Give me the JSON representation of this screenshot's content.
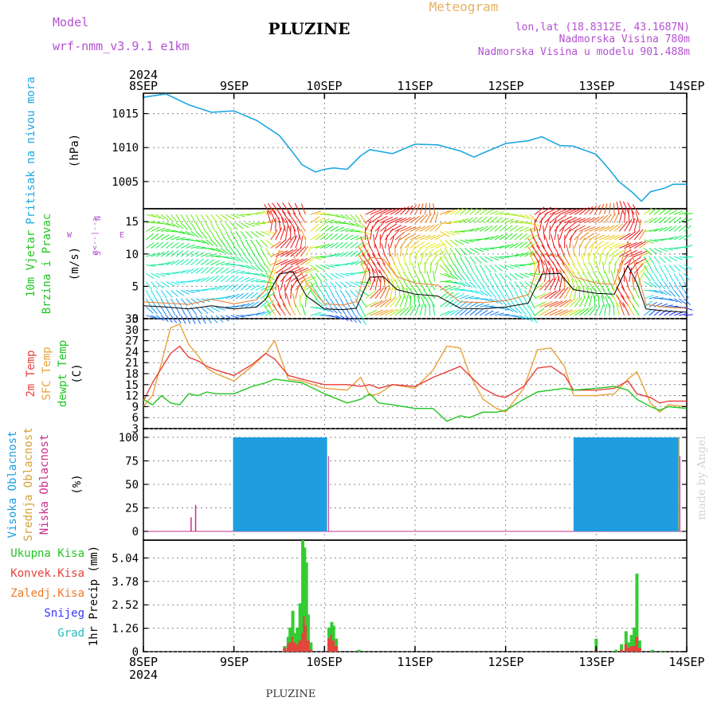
{
  "header": {
    "model_label": "Model",
    "model_name": "wrf-nmm_v3.9.1  e1km",
    "station": "PLUZINE",
    "meteogram": "Meteogram",
    "lonlat": "lon,lat (18.8312E, 43.1687N)",
    "elevation": "Nadmorska Visina 780m",
    "model_elevation": "Nadmorska Visina u modelu 901.488m",
    "footer_station": "PLUZINE",
    "watermark": "made by Angel"
  },
  "colors": {
    "pressure": "#1ea8e0",
    "temp2m": "#e8413c",
    "sfc": "#e8a33a",
    "dewpt": "#22c522",
    "hi_cloud": "#1e9ee0",
    "mid_cloud": "#d4a23a",
    "low_cloud": "#c82f8c",
    "total_precip": "#33cc33",
    "conv_precip": "#e8413c",
    "frozen": "#ee7a2a",
    "snow": "#3333ff",
    "graupel": "#22bbbb",
    "magenta": "#b450d2"
  },
  "chart_data": {
    "type": "meteogram",
    "year": "2024",
    "x_ticks": [
      "8SEP",
      "9SEP",
      "10SEP",
      "11SEP",
      "12SEP",
      "13SEP",
      "14SEP"
    ],
    "pressure": {
      "type": "line",
      "ylabel_1": "Pritisak na nivou mora",
      "ylabel_2": "(hPa)",
      "ylim": [
        1001,
        1018
      ],
      "yticks": [
        "1015",
        "1010",
        "1005"
      ],
      "yticks_values": [
        1015,
        1010,
        1005
      ],
      "x": [
        0,
        0.25,
        0.5,
        0.75,
        1.0,
        1.25,
        1.5,
        1.65,
        1.75,
        1.9,
        2.0,
        2.1,
        2.25,
        2.4,
        2.5,
        2.75,
        3.0,
        3.25,
        3.5,
        3.65,
        3.75,
        4.0,
        4.25,
        4.4,
        4.6,
        4.75,
        5.0,
        5.15,
        5.25,
        5.4,
        5.5,
        5.6,
        5.75,
        5.85,
        6.0
      ],
      "values": [
        1017.4,
        1017.9,
        1016.3,
        1015.2,
        1015.4,
        1014.0,
        1011.8,
        1009.3,
        1007.5,
        1006.4,
        1006.8,
        1007.0,
        1006.8,
        1008.8,
        1009.7,
        1009.1,
        1010.5,
        1010.4,
        1009.5,
        1008.6,
        1009.2,
        1010.6,
        1011.0,
        1011.6,
        1010.3,
        1010.2,
        1009.0,
        1006.7,
        1005.0,
        1003.4,
        1002.1,
        1003.5,
        1004.0,
        1004.6,
        1004.6
      ]
    },
    "wind": {
      "type": "line",
      "ylabel_1": "10m Vjetar",
      "ylabel_2": "Brzina i Pravac",
      "ylabel_3": "(m/s)",
      "compass_n": "N",
      "compass_w": "W",
      "compass_e": "E",
      "compass_s": "S",
      "compass_sym": "α<--|-->",
      "ylim": [
        0,
        17
      ],
      "yticks": [
        "15",
        "10",
        "5",
        "0"
      ],
      "yticks_values": [
        15,
        10,
        5,
        0
      ],
      "x": [
        0,
        0.25,
        0.5,
        0.75,
        1.0,
        1.25,
        1.35,
        1.5,
        1.65,
        1.8,
        2.0,
        2.2,
        2.35,
        2.5,
        2.65,
        2.8,
        3.0,
        3.25,
        3.5,
        3.75,
        4.0,
        4.25,
        4.4,
        4.6,
        4.75,
        5.0,
        5.2,
        5.35,
        5.45,
        5.55,
        5.75,
        6.0
      ],
      "speed": [
        2.0,
        1.8,
        1.5,
        2.0,
        1.5,
        1.8,
        3.0,
        6.9,
        7.3,
        3.5,
        1.5,
        1.4,
        1.6,
        6.4,
        6.5,
        4.5,
        3.8,
        3.5,
        1.6,
        1.5,
        1.8,
        2.4,
        6.9,
        7.0,
        4.5,
        3.9,
        3.8,
        8.2,
        5.5,
        1.5,
        1.2,
        1.0
      ],
      "gust": [
        2.6,
        2.4,
        2.2,
        3.0,
        2.3,
        2.9,
        4.5,
        10.5,
        10.0,
        5.5,
        2.3,
        2.1,
        2.6,
        9.5,
        9.2,
        6.5,
        5.5,
        5.2,
        2.6,
        2.5,
        2.8,
        3.7,
        10.0,
        9.6,
        6.5,
        5.5,
        5.3,
        12.0,
        7.5,
        2.2,
        1.8,
        1.6
      ]
    },
    "temperature": {
      "type": "line",
      "ylabel_1": "2m Temp",
      "ylabel_2": "SFC Temp",
      "ylabel_3": "dewpt Temp",
      "ylabel_4": "(C)",
      "ylim": [
        3,
        33
      ],
      "yticks": [
        "33",
        "30",
        "27",
        "24",
        "21",
        "18",
        "15",
        "12",
        "9",
        "6",
        "3"
      ],
      "yticks_values": [
        33,
        30,
        27,
        24,
        21,
        18,
        15,
        12,
        9,
        6,
        3
      ],
      "x": [
        0,
        0.1,
        0.2,
        0.3,
        0.4,
        0.5,
        0.6,
        0.7,
        0.8,
        1.0,
        1.2,
        1.35,
        1.45,
        1.6,
        1.75,
        2.0,
        2.25,
        2.4,
        2.5,
        2.6,
        2.75,
        3.0,
        3.2,
        3.35,
        3.5,
        3.6,
        3.75,
        3.9,
        4.0,
        4.2,
        4.35,
        4.5,
        4.65,
        4.75,
        5.0,
        5.2,
        5.35,
        5.45,
        5.6,
        5.7,
        5.8,
        6.0
      ],
      "t2m": [
        10.5,
        15.5,
        19.5,
        23.5,
        25.5,
        22.5,
        21.5,
        20.0,
        19.0,
        17.5,
        20.5,
        23.5,
        22.0,
        17.5,
        16.5,
        15.0,
        15.0,
        14.5,
        15.0,
        14.0,
        15.0,
        14.5,
        17.0,
        18.5,
        20.0,
        17.5,
        14.0,
        12.0,
        11.5,
        14.5,
        19.5,
        20.0,
        17.5,
        13.5,
        13.5,
        14.0,
        16.0,
        12.5,
        11.5,
        10.0,
        10.5,
        10.5
      ],
      "sfc": [
        9.0,
        12.0,
        21.0,
        30.5,
        31.5,
        26.0,
        23.0,
        19.5,
        18.0,
        16.0,
        20.0,
        23.5,
        27.0,
        16.5,
        16.0,
        14.0,
        13.5,
        17.0,
        12.0,
        12.5,
        15.0,
        14.0,
        19.0,
        25.5,
        25.0,
        18.0,
        11.0,
        8.5,
        7.5,
        14.0,
        24.5,
        25.0,
        20.0,
        12.0,
        12.0,
        12.5,
        16.5,
        18.5,
        10.0,
        7.5,
        9.5,
        9.0
      ],
      "dewpt": [
        11.0,
        9.5,
        12.0,
        10.0,
        9.5,
        12.5,
        12.0,
        13.0,
        12.5,
        12.5,
        14.5,
        15.5,
        16.5,
        16.0,
        15.5,
        12.5,
        10.0,
        11.0,
        12.5,
        10.0,
        9.5,
        8.5,
        8.5,
        5.0,
        6.5,
        6.0,
        7.5,
        7.5,
        8.0,
        11.0,
        13.0,
        13.5,
        14.0,
        13.5,
        14.0,
        14.5,
        13.5,
        11.0,
        9.0,
        8.0,
        9.0,
        8.5
      ]
    },
    "clouds": {
      "type": "bar",
      "ylabel_1": "Visoka Oblacnost",
      "ylabel_2": "Srednja Oblacnost",
      "ylabel_3": "Niska Oblacnost",
      "ylabel_4": "(%)",
      "ylim": [
        0,
        100
      ],
      "yticks": [
        "100",
        "75",
        "50",
        "25",
        "0"
      ],
      "yticks_values": [
        100,
        75,
        50,
        25,
        0
      ],
      "high_cover_periods": [
        [
          0.99,
          2.02
        ],
        [
          4.75,
          5.88
        ]
      ],
      "high_cover_value": 100,
      "spikes": [
        {
          "day": 0.52,
          "value": 15
        },
        {
          "day": 0.57,
          "value": 28
        }
      ]
    },
    "precip": {
      "type": "bar",
      "ylabel_1": "1hr Precip (mm)",
      "legend": [
        "Ukupna Kisa",
        "Konvek.Kisa",
        "Zaledj.Kisa",
        "Snijeg",
        "Grad"
      ],
      "ylim": [
        0,
        6.0
      ],
      "yticks": [
        "5.04",
        "3.78",
        "2.52",
        "1.26",
        "0"
      ],
      "yticks_values": [
        5.04,
        3.78,
        2.52,
        1.26,
        0
      ],
      "x": [
        1.56,
        1.6,
        1.62,
        1.65,
        1.67,
        1.7,
        1.73,
        1.76,
        1.78,
        1.8,
        1.82,
        1.85,
        2.05,
        2.08,
        2.1,
        2.13,
        2.38,
        5.0,
        5.22,
        5.28,
        5.33,
        5.36,
        5.39,
        5.42,
        5.45,
        5.48,
        5.62,
        5.72
      ],
      "values": [
        0.3,
        0.8,
        1.3,
        2.2,
        1.0,
        1.3,
        2.6,
        6.0,
        5.6,
        4.8,
        2.0,
        0.5,
        1.3,
        1.6,
        1.4,
        0.7,
        0.1,
        0.7,
        0.1,
        0.4,
        1.1,
        0.5,
        0.9,
        1.3,
        4.2,
        0.6,
        0.1,
        0.05
      ],
      "convective": [
        0.2,
        0.4,
        0.5,
        0.8,
        0.5,
        0.4,
        0.6,
        1.0,
        1.9,
        1.4,
        0.6,
        0.1,
        0.7,
        0.9,
        0.6,
        0.3,
        0,
        0.1,
        0,
        0.1,
        0.4,
        0.2,
        0.3,
        0.3,
        0.8,
        0.2,
        0,
        0
      ]
    }
  }
}
